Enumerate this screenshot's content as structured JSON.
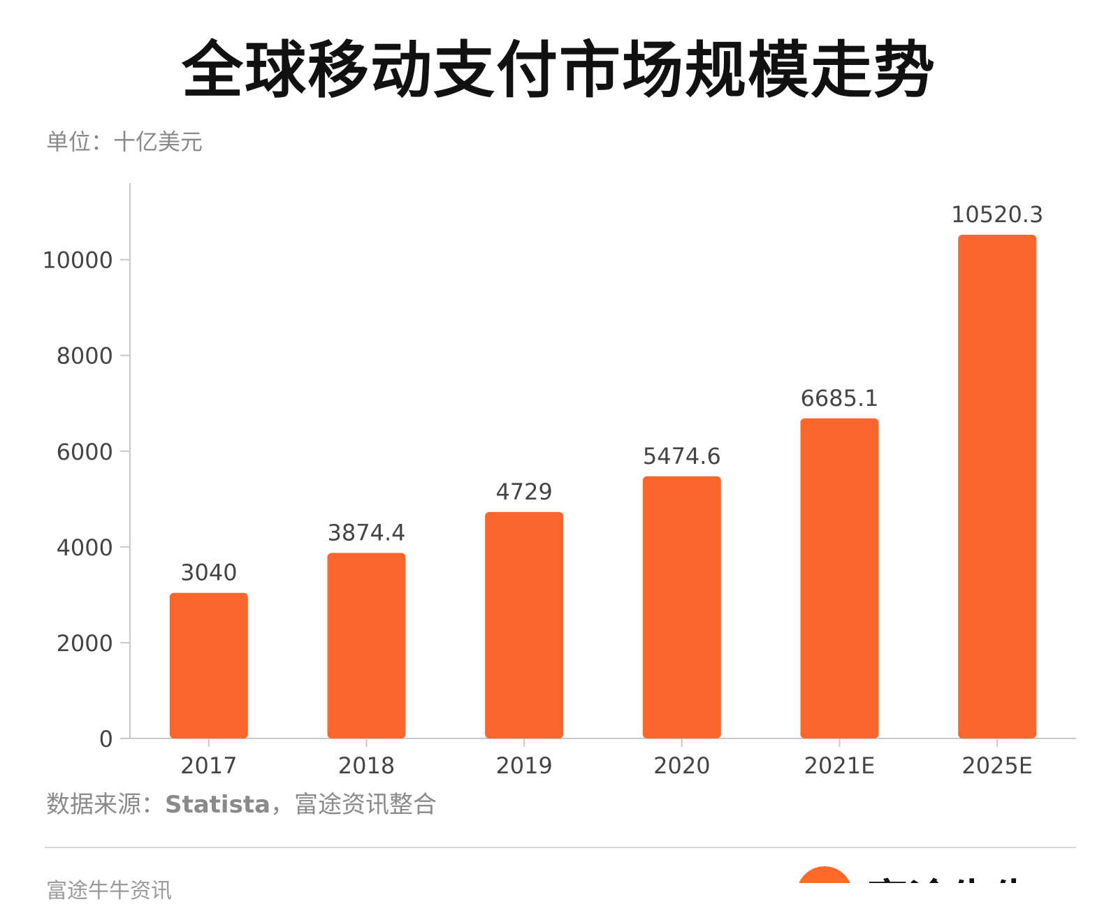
{
  "header": {
    "title": "全球移动支付市场规模走势",
    "unit": "单位：十亿美元"
  },
  "chart_data": {
    "type": "bar",
    "title": "全球移动支付市场规模走势",
    "ylabel": "单位：十亿美元",
    "xlabel": "",
    "categories": [
      "2017",
      "2018",
      "2019",
      "2020",
      "2021E",
      "2025E"
    ],
    "values": [
      3040,
      3874.4,
      4729,
      5474.6,
      6685.1,
      10520.3
    ],
    "value_labels": [
      "3040",
      "3874.4",
      "4729",
      "5474.6",
      "6685.1",
      "10520.3"
    ],
    "yticks": [
      0,
      2000,
      4000,
      6000,
      8000,
      10000
    ],
    "ylim": [
      0,
      11600
    ],
    "grid": false,
    "legend": "none",
    "bar_color": "#fb662d"
  },
  "footer": {
    "source_label": "数据来源：",
    "source_bold": "Statista",
    "source_rest": "，富途资讯整合",
    "left_text": "富途牛牛资讯",
    "logo_text": "富途牛牛",
    "logo_color": "#ff6a2b"
  }
}
